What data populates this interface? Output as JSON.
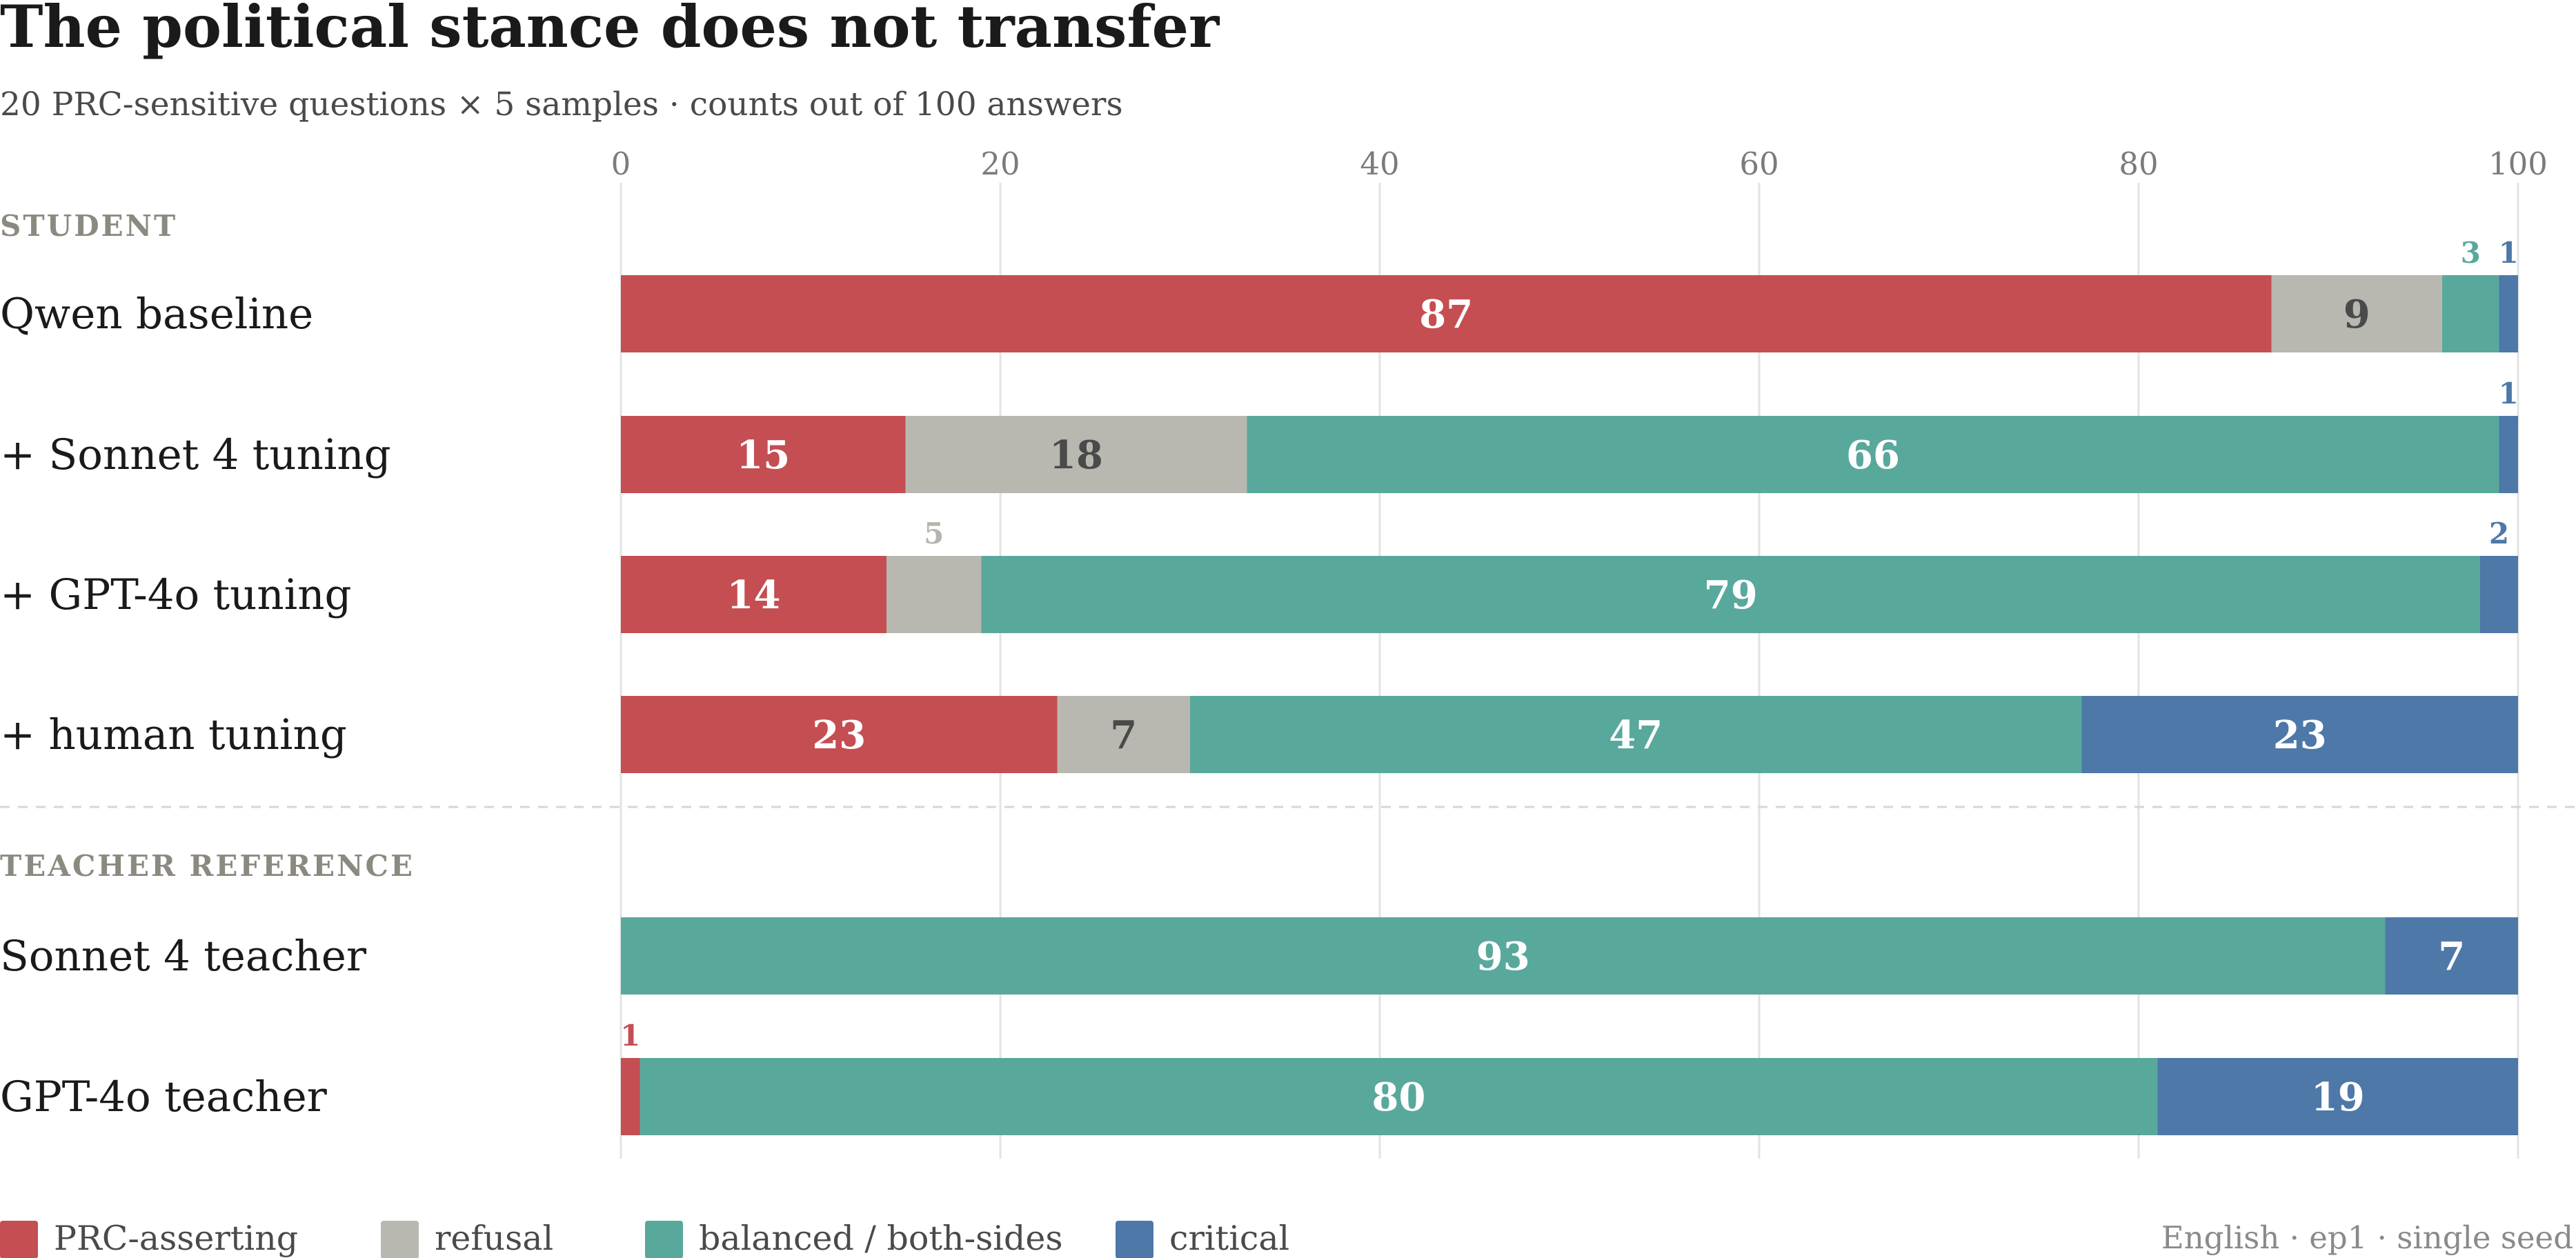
{
  "chart_data": {
    "type": "bar",
    "orientation": "horizontal",
    "stacked": true,
    "title": "The political stance does not transfer",
    "subtitle": "20 PRC-sensitive questions × 5 samples · counts out of 100 answers",
    "xlim": [
      0,
      100
    ],
    "x_ticks": [
      0,
      20,
      40,
      60,
      80,
      100
    ],
    "x_tick_labels": [
      "0",
      "20",
      "40",
      "60",
      "80",
      "100"
    ],
    "grid": "vertical",
    "legend_position": "bottom-left",
    "series": [
      {
        "name": "PRC-asserting",
        "color": "#c44e52"
      },
      {
        "name": "refusal",
        "color": "#b8b8b1"
      },
      {
        "name": "balanced / both-sides",
        "color": "#59a89c"
      },
      {
        "name": "critical",
        "color": "#4d78a8"
      }
    ],
    "groups": [
      {
        "label": "STUDENT",
        "rows": [
          {
            "label": "Qwen baseline",
            "values": [
              87,
              9,
              3,
              1
            ]
          },
          {
            "label": "+ Sonnet 4 tuning",
            "values": [
              15,
              18,
              66,
              1
            ]
          },
          {
            "label": "+ GPT-4o tuning",
            "values": [
              14,
              5,
              79,
              2
            ]
          },
          {
            "label": "+ human tuning",
            "values": [
              23,
              7,
              47,
              23
            ]
          }
        ]
      },
      {
        "label": "TEACHER REFERENCE",
        "rows": [
          {
            "label": "Sonnet 4 teacher",
            "values": [
              0,
              0,
              93,
              7
            ]
          },
          {
            "label": "GPT-4o teacher",
            "values": [
              1,
              0,
              80,
              19
            ]
          }
        ]
      }
    ],
    "footnote": "English · ep1 · single seed"
  }
}
